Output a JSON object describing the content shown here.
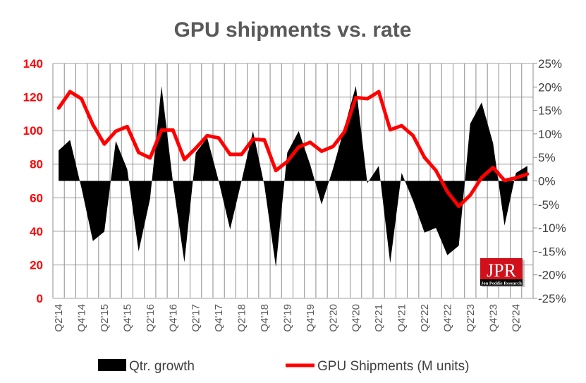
{
  "chart_data": {
    "type": "area+line",
    "title": "GPU shipments vs. rate",
    "categories": [
      "Q2'14",
      "",
      "Q4'14",
      "",
      "Q2'15",
      "",
      "Q4'15",
      "",
      "Q2'16",
      "",
      "Q4'16",
      "",
      "Q2'17",
      "",
      "Q4'17",
      "",
      "Q2'18",
      "",
      "Q4'18",
      "",
      "Q2'19",
      "",
      "Q4'19",
      "",
      "Q2'20",
      "",
      "Q4'20",
      "",
      "Q2'21",
      "",
      "Q4'21",
      "",
      "Q2'22",
      "",
      "Q4'22",
      "",
      "Q2'23",
      "",
      "Q4'23",
      "",
      "Q2'24",
      ""
    ],
    "left_axis": {
      "ylim": [
        0,
        140
      ],
      "ticks": [
        "0",
        "20",
        "40",
        "60",
        "80",
        "100",
        "120",
        "140"
      ],
      "color": "#ff0000"
    },
    "right_axis": {
      "ylim": [
        -25,
        25
      ],
      "ticks": [
        "-25%",
        "-20%",
        "-15%",
        "-10%",
        "-5%",
        "0%",
        "5%",
        "10%",
        "15%",
        "20%",
        "25%"
      ]
    },
    "grid": true,
    "legend_position": "bottom",
    "series": [
      {
        "name": "Qtr. growth",
        "type": "area",
        "axis": "right",
        "color": "#000000",
        "values": [
          6.5,
          8.7,
          -1.5,
          -12.8,
          -10.8,
          8.5,
          2.5,
          -15,
          -3.8,
          20.2,
          -0.3,
          -17.3,
          6,
          9.2,
          0,
          -10.3,
          0,
          10.6,
          -1,
          -18.3,
          6,
          10.6,
          3.5,
          -5,
          2.6,
          11.4,
          20.2,
          -0.5,
          3.2,
          -17.5,
          1.7,
          -4.2,
          -11,
          -10,
          -15.8,
          -13.8,
          12.2,
          16.7,
          8,
          -9.5,
          1.7,
          3.2
        ]
      },
      {
        "name": "GPU Shipments (M units)",
        "type": "line",
        "axis": "left",
        "color": "#ff0000",
        "values": [
          113.4,
          123.2,
          119,
          103.5,
          92,
          99.6,
          102.4,
          87,
          83.7,
          100.3,
          100.3,
          82.8,
          89.5,
          97,
          95.6,
          85.8,
          85.8,
          94.9,
          94.4,
          76.2,
          81.6,
          90.2,
          93,
          87.7,
          90.5,
          99.3,
          119.7,
          119,
          123.2,
          100.5,
          102.9,
          97,
          84,
          76.2,
          63.6,
          54.9,
          61.5,
          72,
          78,
          70.3,
          71.8,
          74.1
        ]
      }
    ]
  },
  "logo": {
    "mark": "JPR",
    "name": "Jon Peddie Research"
  }
}
